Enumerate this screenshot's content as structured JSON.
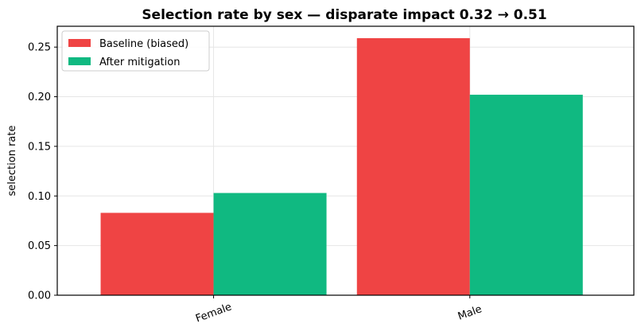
{
  "chart_data": {
    "type": "bar",
    "title": "Selection rate by sex — disparate impact 0.32 → 0.51",
    "xlabel": "",
    "ylabel": "selection rate",
    "categories": [
      "Female",
      "Male"
    ],
    "series": [
      {
        "name": "Baseline (biased)",
        "color": "#ef4444",
        "values": [
          0.083,
          0.259
        ]
      },
      {
        "name": "After mitigation",
        "color": "#10b981",
        "values": [
          0.103,
          0.202
        ]
      }
    ],
    "ylim": [
      0,
      0.271
    ],
    "yticks": [
      "0.00",
      "0.05",
      "0.10",
      "0.15",
      "0.20",
      "0.25"
    ],
    "grid": true,
    "legend_position": "top-left"
  }
}
